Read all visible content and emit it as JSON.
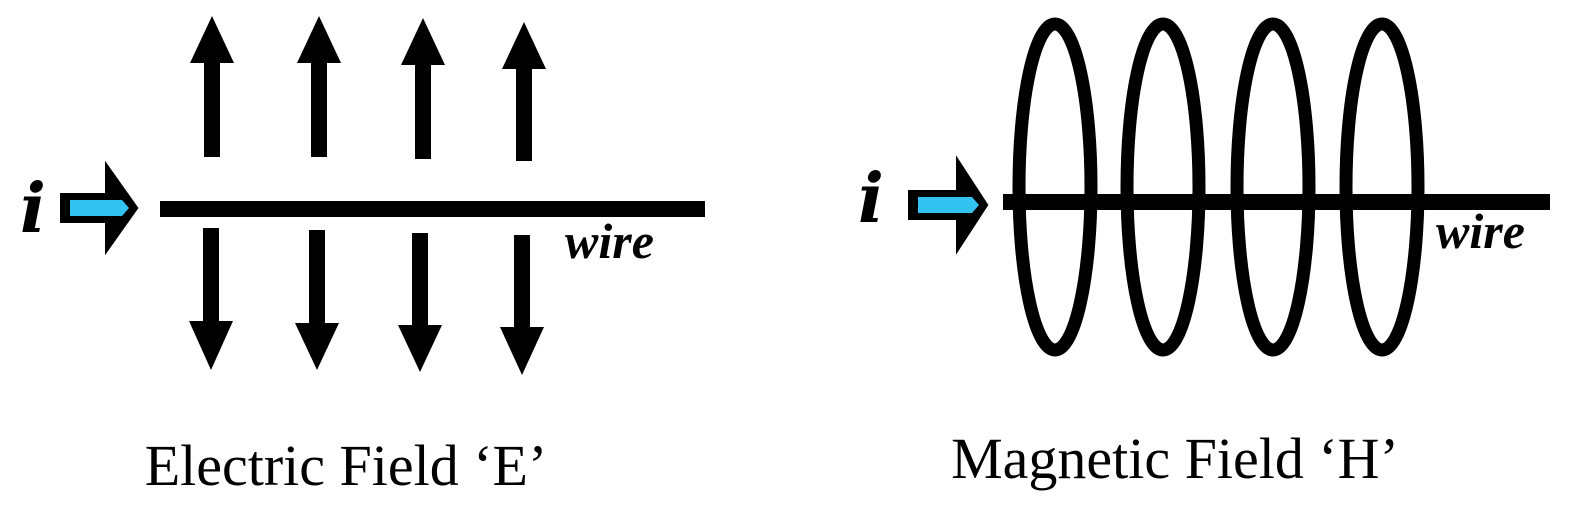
{
  "electric_panel": {
    "current_symbol": "i",
    "wire_label": "wire",
    "caption": "Electric Field ‘E’"
  },
  "magnetic_panel": {
    "current_symbol": "i",
    "wire_label": "wire",
    "caption": "Magnetic Field ‘H’"
  },
  "colors": {
    "ink": "#000000",
    "current_arrow_fill": "#33c3f0",
    "background": "#ffffff"
  }
}
